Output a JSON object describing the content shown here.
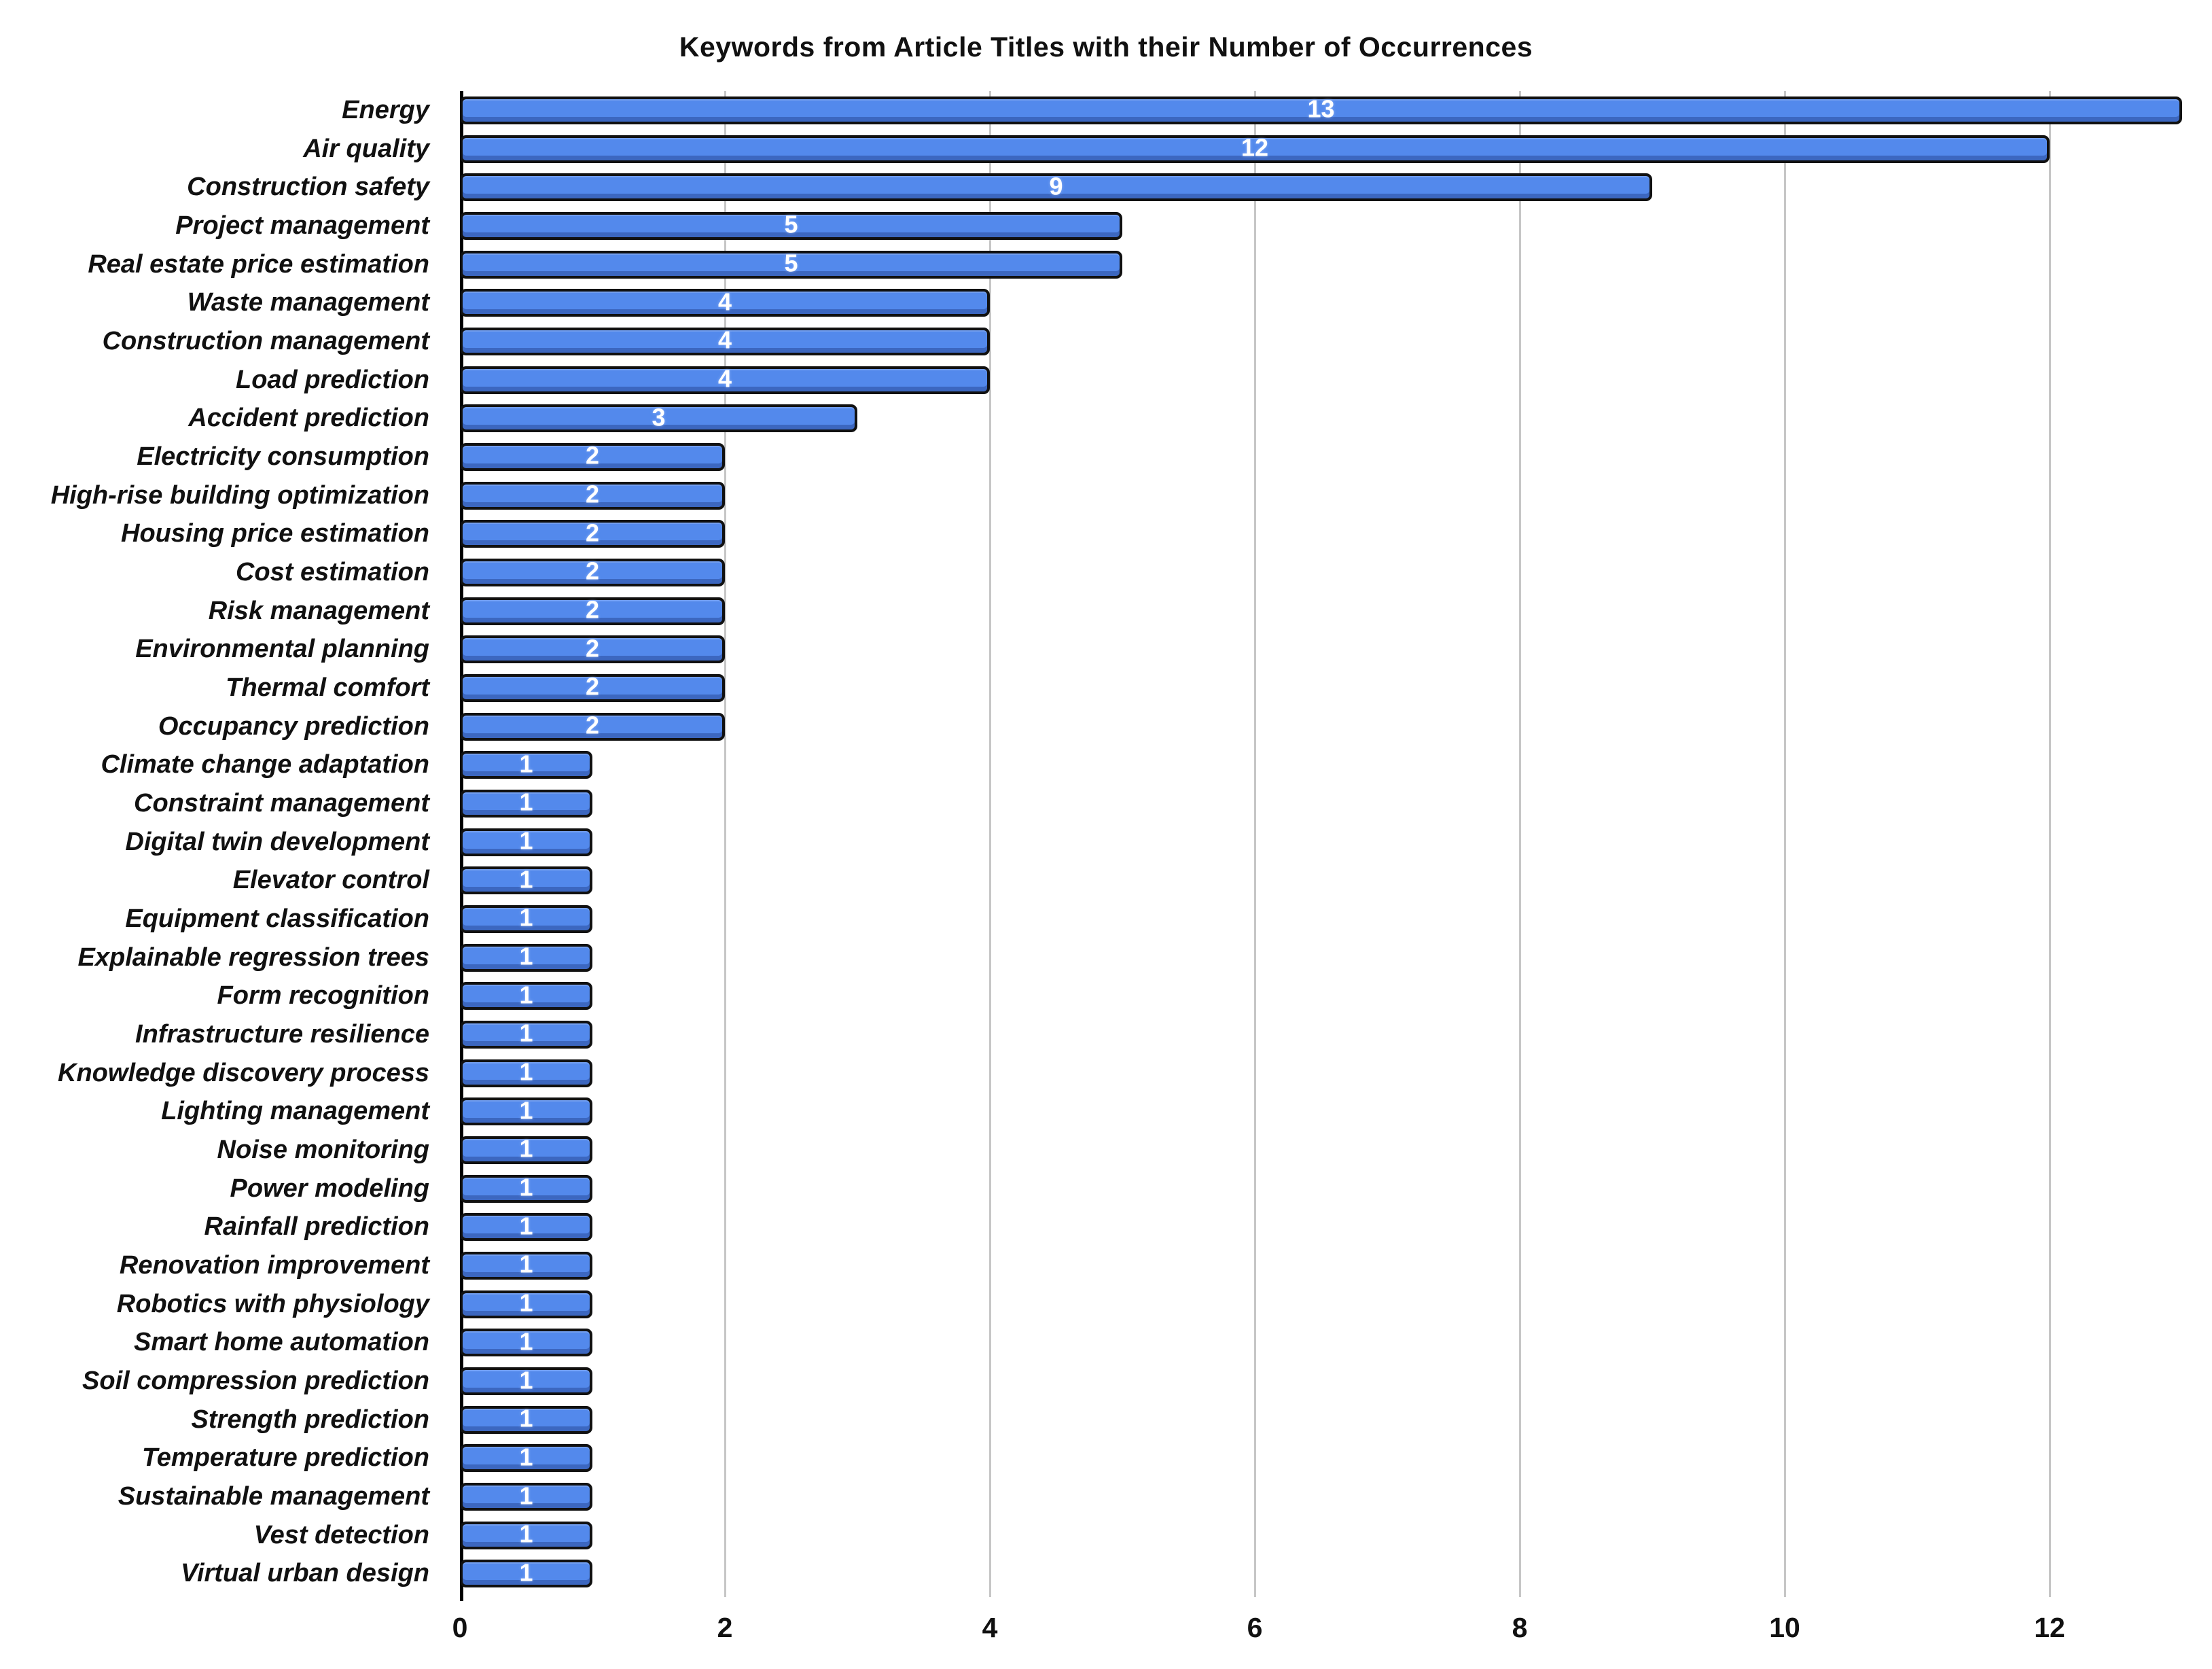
{
  "title": "Keywords from Article Titles with their Number of Occurrences",
  "chart_data": {
    "type": "bar",
    "orientation": "horizontal",
    "title": "Keywords from Article Titles with their Number of Occurrences",
    "xlabel": "",
    "ylabel": "",
    "legend": "none",
    "grid": "vertical",
    "xlim": [
      0,
      13.2
    ],
    "xticks": [
      0,
      2,
      4,
      6,
      8,
      10,
      12
    ],
    "categories": [
      "Energy",
      "Air quality",
      "Construction safety",
      "Project management",
      "Real estate price estimation",
      "Waste management",
      "Construction management",
      "Load prediction",
      "Accident prediction",
      "Electricity consumption",
      "High-rise building optimization",
      "Housing price estimation",
      "Cost estimation",
      "Risk management",
      "Environmental planning",
      "Thermal comfort",
      "Occupancy prediction",
      "Climate change adaptation",
      "Constraint management",
      "Digital twin development",
      "Elevator control",
      "Equipment classification",
      "Explainable regression trees",
      "Form recognition",
      "Infrastructure resilience",
      "Knowledge discovery process",
      "Lighting management",
      "Noise monitoring",
      "Power modeling",
      "Rainfall prediction",
      "Renovation improvement",
      "Robotics with physiology",
      "Smart home automation",
      "Soil compression prediction",
      "Strength prediction",
      "Temperature prediction",
      "Sustainable management",
      "Vest detection",
      "Virtual urban design"
    ],
    "values": [
      13,
      12,
      9,
      5,
      5,
      4,
      4,
      4,
      3,
      2,
      2,
      2,
      2,
      2,
      2,
      2,
      2,
      1,
      1,
      1,
      1,
      1,
      1,
      1,
      1,
      1,
      1,
      1,
      1,
      1,
      1,
      1,
      1,
      1,
      1,
      1,
      1,
      1,
      1
    ],
    "colors": {
      "bar_fill": "#5389EC",
      "bar_border": "#111111",
      "value_label": "#ffffff",
      "gridline": "#c6c6c6",
      "axis_line": "#000000",
      "text": "#111111"
    }
  }
}
